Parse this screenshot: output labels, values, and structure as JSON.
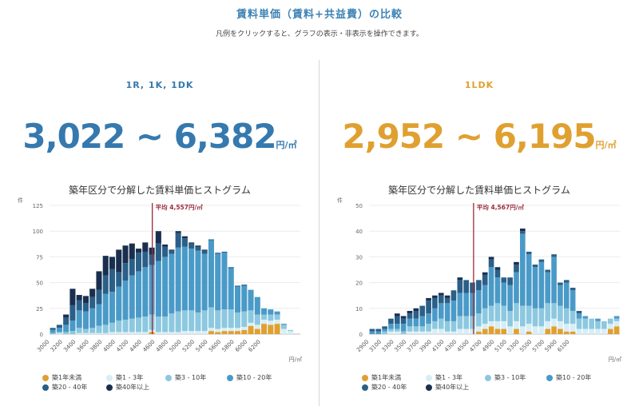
{
  "header": {
    "title": "賃料単価（賃料+共益費）の比較",
    "subtitle": "凡例をクリックすると、グラフの表示・非表示を操作できます。"
  },
  "legend": [
    {
      "label": "築1年未満",
      "color": "#e0a030"
    },
    {
      "label": "築1 - 3年",
      "color": "#d8eef6"
    },
    {
      "label": "築3 - 10年",
      "color": "#8cc8e0"
    },
    {
      "label": "築10 - 20年",
      "color": "#4a9ac8"
    },
    {
      "label": "築20 - 40年",
      "color": "#2a5f88"
    },
    {
      "label": "築40年以上",
      "color": "#1a2f4e"
    }
  ],
  "panels": [
    {
      "title": "1R, 1K, 1DK",
      "accent": "#3579ae",
      "range_text": "3,022 ~ 6,382",
      "unit": "円/㎡",
      "chart_title": "築年区分で分解した賃料単価ヒストグラム",
      "chart_data": {
        "type": "bar",
        "stacked": true,
        "y_unit": "件",
        "x_unit": "円/㎡",
        "ylim": [
          0,
          125
        ],
        "yticks": [
          0,
          25,
          50,
          75,
          100,
          125
        ],
        "xticks": [
          "3000",
          "3200",
          "3400",
          "3600",
          "3800",
          "4000",
          "4200",
          "4400",
          "4600",
          "4800",
          "5000",
          "5200",
          "5400",
          "5600",
          "5800",
          "6000",
          "6200"
        ],
        "bin_start": 3000,
        "bin_width": 100,
        "mean_label": "平均 4,557円/㎡",
        "mean": 4557,
        "series": [
          {
            "name": "築1年未満",
            "values": [
              0,
              0,
              0,
              0,
              0,
              0,
              0,
              0,
              0,
              0,
              0,
              0,
              0,
              0,
              0,
              2,
              0,
              0,
              0,
              0,
              0,
              0,
              0,
              0,
              3,
              2,
              3,
              3,
              3,
              4,
              8,
              5,
              10,
              9,
              10,
              0,
              0,
              0
            ]
          },
          {
            "name": "築1 - 3年",
            "values": [
              0,
              1,
              0,
              0,
              1,
              1,
              1,
              1,
              1,
              2,
              2,
              2,
              2,
              2,
              2,
              2,
              2,
              2,
              2,
              2,
              3,
              3,
              3,
              3,
              3,
              3,
              3,
              3,
              3,
              3,
              3,
              4,
              4,
              4,
              4,
              5,
              3,
              0
            ]
          },
          {
            "name": "築3 - 10年",
            "values": [
              1,
              1,
              2,
              3,
              5,
              4,
              5,
              7,
              8,
              9,
              11,
              12,
              13,
              14,
              15,
              15,
              15,
              15,
              18,
              20,
              20,
              20,
              18,
              20,
              20,
              18,
              18,
              18,
              15,
              15,
              12,
              10,
              5,
              6,
              5,
              4,
              1,
              0
            ]
          },
          {
            "name": "築10 - 20年",
            "values": [
              3,
              4,
              7,
              10,
              17,
              17,
              19,
              21,
              30,
              30,
              33,
              38,
              42,
              45,
              48,
              48,
              54,
              58,
              58,
              62,
              62,
              60,
              60,
              55,
              65,
              55,
              55,
              40,
              25,
              25,
              20,
              17,
              6,
              5,
              3,
              1,
              0,
              0
            ]
          },
          {
            "name": "築20 - 40年",
            "values": [
              2,
              3,
              7,
              15,
              10,
              8,
              11,
              14,
              18,
              22,
              14,
              17,
              16,
              18,
              15,
              10,
              17,
              10,
              3,
              14,
              8,
              5,
              4,
              3,
              1,
              1,
              1,
              1,
              1,
              1,
              0,
              0,
              0,
              0,
              0,
              0,
              0,
              0
            ]
          },
          {
            "name": "築40年以上",
            "values": [
              0,
              0,
              3,
              16,
              5,
              7,
              8,
              18,
              19,
              12,
              22,
              17,
              15,
              4,
              9,
              7,
              12,
              2,
              1,
              2,
              2,
              1,
              1,
              1,
              0,
              0,
              0,
              0,
              0,
              0,
              0,
              0,
              0,
              0,
              0,
              0,
              0,
              0
            ]
          }
        ]
      }
    },
    {
      "title": "1LDK",
      "accent": "#e0a030",
      "range_text": "2,952 ~ 6,195",
      "unit": "円/㎡",
      "chart_title": "築年区分で分解した賃料単価ヒストグラム",
      "chart_data": {
        "type": "bar",
        "stacked": true,
        "y_unit": "件",
        "x_unit": "円/㎡",
        "ylim": [
          0,
          50
        ],
        "yticks": [
          0,
          10,
          20,
          30,
          40,
          50
        ],
        "xticks": [
          "2900",
          "3100",
          "3300",
          "3500",
          "3700",
          "3900",
          "4100",
          "4300",
          "4500",
          "4700",
          "4900",
          "5100",
          "5300",
          "5500",
          "5700",
          "5900",
          "6100"
        ],
        "bin_start": 2900,
        "bin_width": 100,
        "mean_label": "平均 4,567円/㎡",
        "mean": 4567,
        "series": [
          {
            "name": "築1年未満",
            "values": [
              0,
              0,
              0,
              0,
              0,
              0,
              0,
              0,
              0,
              0,
              0,
              0,
              0,
              0,
              0,
              0,
              0,
              1,
              2,
              3,
              2,
              2,
              0,
              2,
              0,
              1,
              0,
              0,
              2,
              3,
              2,
              1,
              1,
              0,
              0,
              0,
              0,
              0,
              2,
              3
            ]
          },
          {
            "name": "築1 - 3年",
            "values": [
              0,
              0,
              0,
              1,
              1,
              0,
              1,
              1,
              1,
              1,
              2,
              2,
              1,
              1,
              2,
              2,
              2,
              2,
              2,
              2,
              3,
              3,
              3,
              3,
              3,
              3,
              3,
              3,
              3,
              3,
              3,
              3,
              3,
              2,
              2,
              2,
              2,
              2,
              2,
              2
            ]
          },
          {
            "name": "築3 - 10年",
            "values": [
              0,
              0,
              1,
              1,
              1,
              1,
              2,
              2,
              2,
              3,
              3,
              4,
              4,
              4,
              5,
              5,
              5,
              5,
              6,
              6,
              7,
              6,
              6,
              7,
              8,
              7,
              7,
              7,
              7,
              6,
              6,
              6,
              5,
              4,
              4,
              4,
              3,
              3,
              2,
              1
            ]
          },
          {
            "name": "築10 - 20年",
            "values": [
              1,
              1,
              1,
              2,
              2,
              3,
              3,
              3,
              4,
              4,
              5,
              6,
              7,
              8,
              9,
              9,
              9,
              9,
              9,
              15,
              10,
              9,
              10,
              12,
              28,
              20,
              16,
              18,
              12,
              18,
              8,
              10,
              8,
              2,
              1,
              0,
              1,
              0,
              0,
              1
            ]
          },
          {
            "name": "築20 - 40年",
            "values": [
              1,
              1,
              1,
              2,
              3,
              2,
              2,
              3,
              4,
              5,
              4,
              3,
              2,
              4,
              5,
              5,
              4,
              4,
              4,
              3,
              3,
              2,
              3,
              3,
              1,
              1,
              1,
              1,
              1,
              1,
              1,
              1,
              1,
              1,
              0,
              0,
              0,
              0,
              0,
              0
            ]
          },
          {
            "name": "築40年以上",
            "values": [
              0,
              0,
              0,
              0,
              1,
              1,
              1,
              1,
              0,
              1,
              1,
              1,
              1,
              0,
              1,
              0,
              0,
              0,
              1,
              1,
              1,
              0,
              0,
              1,
              1,
              0,
              0,
              0,
              0,
              0,
              0,
              0,
              0,
              0,
              0,
              0,
              0,
              0,
              0,
              0
            ]
          }
        ]
      }
    }
  ]
}
